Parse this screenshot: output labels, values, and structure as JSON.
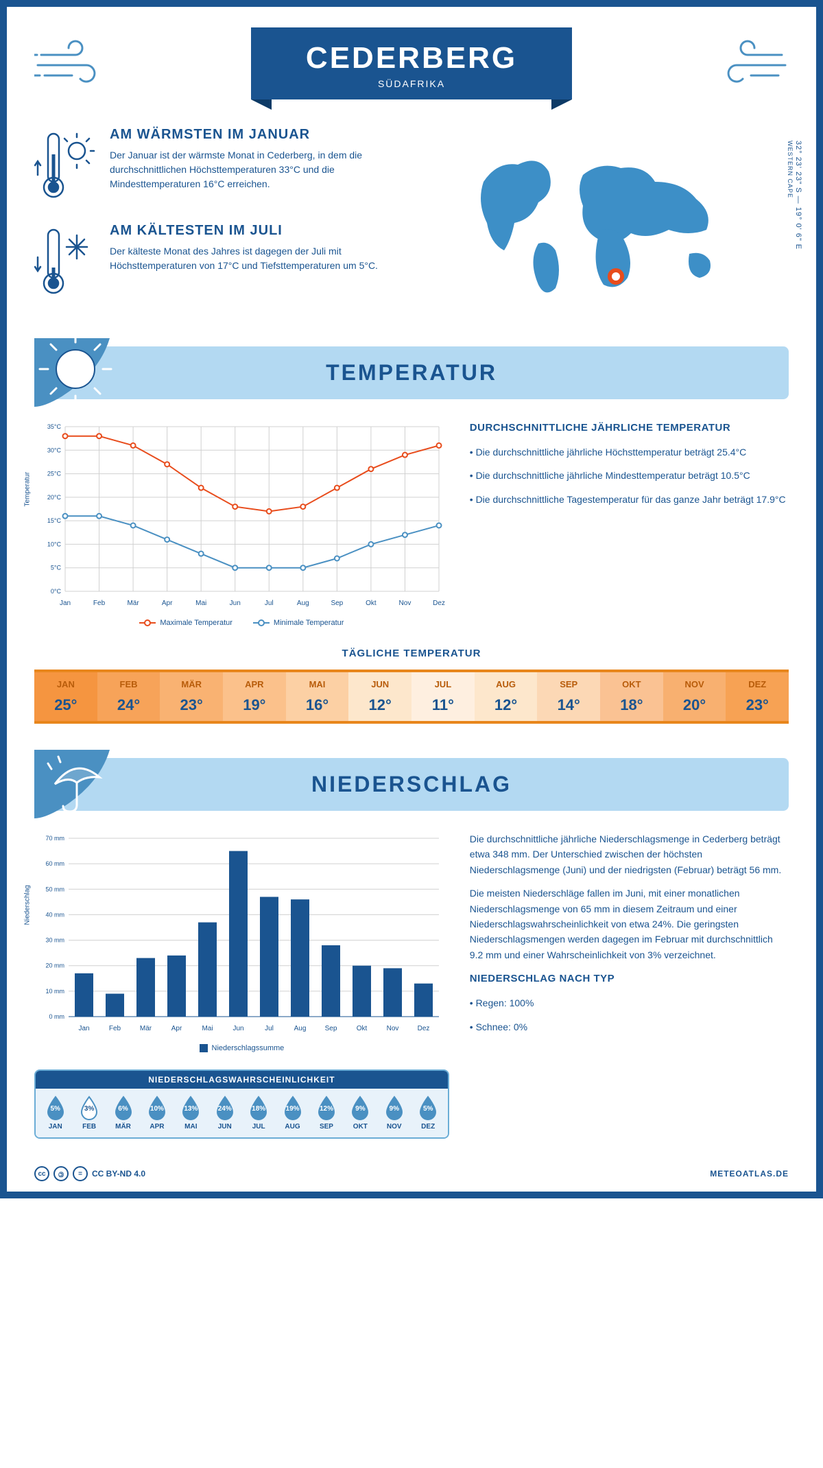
{
  "header": {
    "title": "CEDERBERG",
    "subtitle": "SÜDAFRIKA"
  },
  "coords": {
    "lat": "32° 23' 23\" S",
    "lon": "19° 0' 6\" E",
    "region": "WESTERN CAPE"
  },
  "facts": {
    "warmest": {
      "title": "AM WÄRMSTEN IM JANUAR",
      "text": "Der Januar ist der wärmste Monat in Cederberg, in dem die durchschnittlichen Höchsttemperaturen 33°C und die Mindesttemperaturen 16°C erreichen."
    },
    "coldest": {
      "title": "AM KÄLTESTEN IM JULI",
      "text": "Der kälteste Monat des Jahres ist dagegen der Juli mit Höchsttemperaturen von 17°C und Tiefsttemperaturen um 5°C."
    }
  },
  "colors": {
    "primary": "#1a5490",
    "lightblue": "#b3d9f2",
    "midblue": "#4a90c2",
    "orange": "#e8861c",
    "red": "#e84c1c",
    "grid": "#d0d0d0"
  },
  "temp_section": {
    "title": "TEMPERATUR",
    "chart": {
      "type": "line",
      "months": [
        "Jan",
        "Feb",
        "Mär",
        "Apr",
        "Mai",
        "Jun",
        "Jul",
        "Aug",
        "Sep",
        "Okt",
        "Nov",
        "Dez"
      ],
      "y_label": "Temperatur",
      "y_ticks": [
        "0°C",
        "5°C",
        "10°C",
        "15°C",
        "20°C",
        "25°C",
        "30°C",
        "35°C"
      ],
      "ylim": [
        0,
        35
      ],
      "series": {
        "max": {
          "label": "Maximale Temperatur",
          "color": "#e84c1c",
          "values": [
            33,
            33,
            31,
            27,
            22,
            18,
            17,
            18,
            22,
            26,
            29,
            31
          ]
        },
        "min": {
          "label": "Minimale Temperatur",
          "color": "#4a90c2",
          "values": [
            16,
            16,
            14,
            11,
            8,
            5,
            5,
            5,
            7,
            10,
            12,
            14
          ]
        }
      }
    },
    "summary": {
      "title": "DURCHSCHNITTLICHE JÄHRLICHE TEMPERATUR",
      "bullets": [
        "Die durchschnittliche jährliche Höchsttemperatur beträgt 25.4°C",
        "Die durchschnittliche jährliche Mindesttemperatur beträgt 10.5°C",
        "Die durchschnittliche Tagestemperatur für das ganze Jahr beträgt 17.9°C"
      ]
    },
    "daily": {
      "title": "TÄGLICHE TEMPERATUR",
      "months": [
        "JAN",
        "FEB",
        "MÄR",
        "APR",
        "MAI",
        "JUN",
        "JUL",
        "AUG",
        "SEP",
        "OKT",
        "NOV",
        "DEZ"
      ],
      "values": [
        "25°",
        "24°",
        "23°",
        "19°",
        "16°",
        "12°",
        "11°",
        "12°",
        "14°",
        "18°",
        "20°",
        "23°"
      ],
      "cell_colors": [
        "#f59540",
        "#f7a359",
        "#f9b272",
        "#fbc18b",
        "#fcd0a4",
        "#fde7cc",
        "#feefe0",
        "#fde7cc",
        "#fcd8b5",
        "#fac293",
        "#f8b070",
        "#f7a254"
      ]
    }
  },
  "precip_section": {
    "title": "NIEDERSCHLAG",
    "chart": {
      "type": "bar",
      "y_label": "Niederschlag",
      "legend": "Niederschlagssumme",
      "months": [
        "Jan",
        "Feb",
        "Mär",
        "Apr",
        "Mai",
        "Jun",
        "Jul",
        "Aug",
        "Sep",
        "Okt",
        "Nov",
        "Dez"
      ],
      "values": [
        17,
        9,
        23,
        24,
        37,
        65,
        47,
        46,
        28,
        20,
        19,
        13
      ],
      "y_ticks": [
        "0 mm",
        "10 mm",
        "20 mm",
        "30 mm",
        "40 mm",
        "50 mm",
        "60 mm",
        "70 mm"
      ],
      "ylim": [
        0,
        70
      ],
      "bar_color": "#1a5490"
    },
    "text": {
      "p1": "Die durchschnittliche jährliche Niederschlagsmenge in Cederberg beträgt etwa 348 mm. Der Unterschied zwischen der höchsten Niederschlagsmenge (Juni) und der niedrigsten (Februar) beträgt 56 mm.",
      "p2": "Die meisten Niederschläge fallen im Juni, mit einer monatlichen Niederschlagsmenge von 65 mm in diesem Zeitraum und einer Niederschlagswahrscheinlichkeit von etwa 24%. Die geringsten Niederschlagsmengen werden dagegen im Februar mit durchschnittlich 9.2 mm und einer Wahrscheinlichkeit von 3% verzeichnet.",
      "type_title": "NIEDERSCHLAG NACH TYP",
      "type_bullets": [
        "Regen: 100%",
        "Schnee: 0%"
      ]
    },
    "prob": {
      "title": "NIEDERSCHLAGSWAHRSCHEINLICHKEIT",
      "months": [
        "JAN",
        "FEB",
        "MÄR",
        "APR",
        "MAI",
        "JUN",
        "JUL",
        "AUG",
        "SEP",
        "OKT",
        "NOV",
        "DEZ"
      ],
      "values": [
        "5%",
        "3%",
        "6%",
        "10%",
        "13%",
        "24%",
        "18%",
        "19%",
        "12%",
        "9%",
        "9%",
        "5%"
      ],
      "min_index": 1
    }
  },
  "footer": {
    "license": "CC BY-ND 4.0",
    "site": "METEOATLAS.DE"
  }
}
